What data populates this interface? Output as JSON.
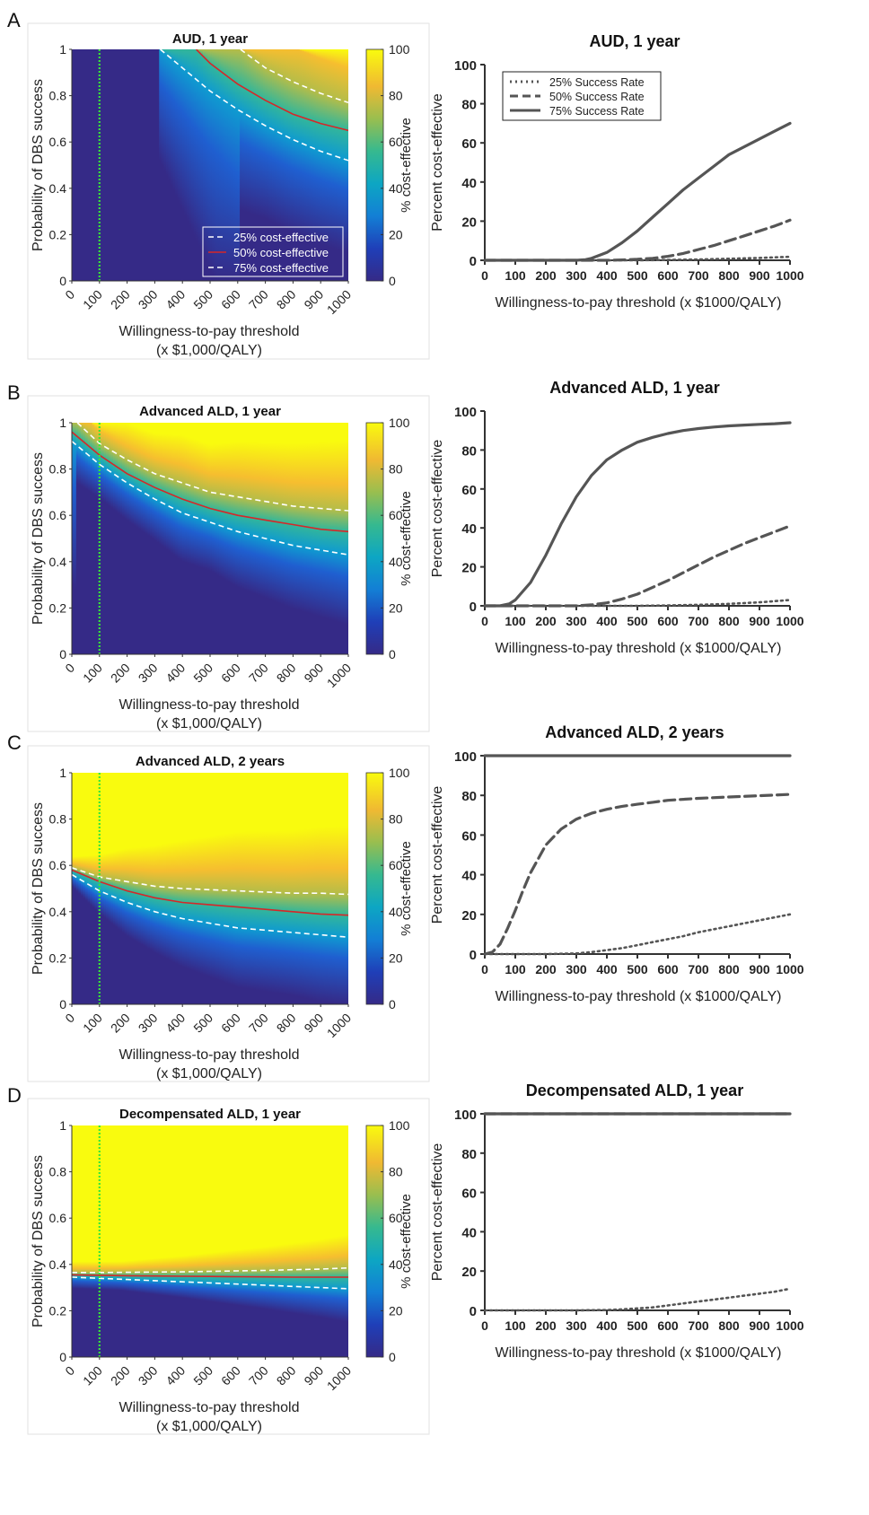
{
  "figure": {
    "heatmap_ylabel": "Probability of DBS success",
    "heatmap_xlabel_line1": "Willingness-to-pay threshold",
    "heatmap_xlabel_line2": "(x $1,000/QALY)",
    "colorbar_label": "% cost-effective",
    "line_ylabel": "Percent cost-effective",
    "line_xlabel": "Willingness-to-pay threshold (x $1000/QALY)"
  },
  "colors": {
    "contour_median": "#d62728",
    "contour_quartile": "#ffffff",
    "wtp_marker": "#39e639",
    "line_series": "#555555"
  },
  "chart_data": [
    {
      "panel": "A",
      "type": "heatmap",
      "title": "AUD, 1 year",
      "xlabel": "Willingness-to-pay threshold (x $1,000/QALY)",
      "ylabel": "Probability of DBS success",
      "x_ticks": [
        "0",
        "100",
        "200",
        "300",
        "400",
        "500",
        "600",
        "700",
        "800",
        "900",
        "1000"
      ],
      "y_ticks": [
        "0",
        "0.2",
        "0.4",
        "0.6",
        "0.8",
        "1"
      ],
      "xlim": [
        0,
        1000
      ],
      "ylim": [
        0,
        1
      ],
      "colorbar": {
        "label": "% cost-effective",
        "ticks": [
          "0",
          "20",
          "40",
          "60",
          "80",
          "100"
        ],
        "colormap": "parula"
      },
      "wtp_marker_x": 100,
      "legend": [
        "25% cost-effective",
        "50% cost-effective",
        "75% cost-effective"
      ],
      "legend_position": "bottom-right",
      "contours": {
        "p25": {
          "x": [
            320,
            400,
            500,
            600,
            700,
            800,
            900,
            1000
          ],
          "y": [
            1.0,
            0.92,
            0.82,
            0.74,
            0.67,
            0.61,
            0.56,
            0.52
          ]
        },
        "p50": {
          "x": [
            450,
            500,
            600,
            700,
            800,
            900,
            1000
          ],
          "y": [
            1.0,
            0.94,
            0.85,
            0.78,
            0.72,
            0.68,
            0.65
          ]
        },
        "p75": {
          "x": [
            610,
            700,
            800,
            900,
            1000
          ],
          "y": [
            1.0,
            0.92,
            0.86,
            0.81,
            0.77
          ]
        }
      }
    },
    {
      "panel": "A",
      "type": "line",
      "title": "AUD, 1 year",
      "xlabel": "Willingness-to-pay threshold (x $1000/QALY)",
      "ylabel": "Percent cost-effective",
      "x_ticks": [
        "0",
        "100",
        "200",
        "300",
        "400",
        "500",
        "600",
        "700",
        "800",
        "900",
        "1000"
      ],
      "y_ticks": [
        "0",
        "20",
        "40",
        "60",
        "80",
        "100"
      ],
      "xlim": [
        0,
        1000
      ],
      "ylim": [
        0,
        100
      ],
      "legend": [
        "25% Success Rate",
        "50% Success Rate",
        "75% Success Rate"
      ],
      "legend_position": "top-left",
      "series": [
        {
          "name": "25% Success Rate",
          "style": "dotted",
          "x": [
            0,
            100,
            200,
            300,
            400,
            500,
            600,
            700,
            800,
            900,
            1000
          ],
          "y": [
            0,
            0,
            0,
            0,
            0,
            0,
            0.2,
            0.4,
            0.8,
            1.2,
            1.8
          ]
        },
        {
          "name": "50% Success Rate",
          "style": "dashed",
          "x": [
            0,
            100,
            200,
            300,
            400,
            450,
            500,
            550,
            600,
            650,
            700,
            750,
            800,
            850,
            900,
            950,
            1000
          ],
          "y": [
            0,
            0,
            0,
            0,
            0,
            0.2,
            0.5,
            1,
            2,
            3.5,
            5.5,
            7.5,
            10,
            12.5,
            15,
            17.5,
            20.5
          ]
        },
        {
          "name": "75% Success Rate",
          "style": "solid",
          "x": [
            0,
            100,
            200,
            300,
            330,
            350,
            400,
            450,
            500,
            550,
            600,
            650,
            700,
            750,
            800,
            850,
            900,
            950,
            1000
          ],
          "y": [
            0,
            0,
            0,
            0,
            0.3,
            1,
            4,
            9,
            15,
            22,
            29,
            36,
            42,
            48,
            54,
            58,
            62,
            66,
            70
          ]
        }
      ]
    },
    {
      "panel": "B",
      "type": "heatmap",
      "title": "Advanced ALD, 1 year",
      "xlabel": "Willingness-to-pay threshold (x $1,000/QALY)",
      "ylabel": "Probability of DBS success",
      "x_ticks": [
        "0",
        "100",
        "200",
        "300",
        "400",
        "500",
        "600",
        "700",
        "800",
        "900",
        "1000"
      ],
      "y_ticks": [
        "0",
        "0.2",
        "0.4",
        "0.6",
        "0.8",
        "1"
      ],
      "xlim": [
        0,
        1000
      ],
      "ylim": [
        0,
        1
      ],
      "colorbar": {
        "label": "% cost-effective",
        "ticks": [
          "0",
          "20",
          "40",
          "60",
          "80",
          "100"
        ],
        "colormap": "parula"
      },
      "wtp_marker_x": 100,
      "contours": {
        "p25": {
          "x": [
            0,
            100,
            200,
            300,
            400,
            500,
            600,
            700,
            800,
            900,
            1000
          ],
          "y": [
            0.92,
            0.82,
            0.74,
            0.67,
            0.61,
            0.57,
            0.53,
            0.5,
            0.47,
            0.45,
            0.43
          ]
        },
        "p50": {
          "x": [
            0,
            100,
            200,
            300,
            400,
            500,
            600,
            700,
            800,
            900,
            1000
          ],
          "y": [
            0.96,
            0.86,
            0.78,
            0.72,
            0.67,
            0.63,
            0.6,
            0.58,
            0.56,
            0.54,
            0.53
          ]
        },
        "p75": {
          "x": [
            20,
            100,
            200,
            300,
            400,
            500,
            600,
            700,
            800,
            900,
            1000
          ],
          "y": [
            1.0,
            0.91,
            0.84,
            0.78,
            0.74,
            0.7,
            0.68,
            0.66,
            0.64,
            0.63,
            0.62
          ]
        }
      }
    },
    {
      "panel": "B",
      "type": "line",
      "title": "Advanced ALD, 1 year",
      "xlabel": "Willingness-to-pay threshold (x $1000/QALY)",
      "ylabel": "Percent cost-effective",
      "x_ticks": [
        "0",
        "100",
        "200",
        "300",
        "400",
        "500",
        "600",
        "700",
        "800",
        "900",
        "1000"
      ],
      "y_ticks": [
        "0",
        "20",
        "40",
        "60",
        "80",
        "100"
      ],
      "xlim": [
        0,
        1000
      ],
      "ylim": [
        0,
        100
      ],
      "series": [
        {
          "name": "25% Success Rate",
          "style": "dotted",
          "x": [
            0,
            100,
            200,
            300,
            400,
            500,
            600,
            700,
            800,
            900,
            1000
          ],
          "y": [
            0,
            0,
            0,
            0,
            0,
            0,
            0.2,
            0.5,
            1,
            1.8,
            3
          ]
        },
        {
          "name": "50% Success Rate",
          "style": "dashed",
          "x": [
            0,
            100,
            200,
            300,
            350,
            400,
            450,
            500,
            550,
            600,
            650,
            700,
            750,
            800,
            850,
            900,
            950,
            1000
          ],
          "y": [
            0,
            0,
            0,
            0,
            0.5,
            1.5,
            3.5,
            6,
            9.5,
            13,
            17,
            21,
            25,
            28.5,
            32,
            35,
            38,
            41
          ]
        },
        {
          "name": "75% Success Rate",
          "style": "solid",
          "x": [
            0,
            50,
            80,
            100,
            150,
            200,
            250,
            300,
            350,
            400,
            450,
            500,
            550,
            600,
            650,
            700,
            750,
            800,
            850,
            900,
            950,
            1000
          ],
          "y": [
            0,
            0,
            1,
            3,
            12,
            26,
            42,
            56,
            67,
            75,
            80,
            84,
            86.5,
            88.5,
            90,
            91,
            91.8,
            92.4,
            92.8,
            93.2,
            93.5,
            94
          ]
        }
      ]
    },
    {
      "panel": "C",
      "type": "heatmap",
      "title": "Advanced ALD, 2 years",
      "xlabel": "Willingness-to-pay threshold (x $1,000/QALY)",
      "ylabel": "Probability of DBS success",
      "x_ticks": [
        "0",
        "100",
        "200",
        "300",
        "400",
        "500",
        "600",
        "700",
        "800",
        "900",
        "1000"
      ],
      "y_ticks": [
        "0",
        "0.2",
        "0.4",
        "0.6",
        "0.8",
        "1"
      ],
      "xlim": [
        0,
        1000
      ],
      "ylim": [
        0,
        1
      ],
      "colorbar": {
        "label": "% cost-effective",
        "ticks": [
          "0",
          "20",
          "40",
          "60",
          "80",
          "100"
        ],
        "colormap": "parula"
      },
      "wtp_marker_x": 100,
      "contours": {
        "p25": {
          "x": [
            0,
            100,
            200,
            300,
            400,
            500,
            600,
            700,
            800,
            900,
            1000
          ],
          "y": [
            0.56,
            0.49,
            0.44,
            0.4,
            0.37,
            0.35,
            0.33,
            0.32,
            0.31,
            0.3,
            0.29
          ]
        },
        "p50": {
          "x": [
            0,
            100,
            200,
            300,
            400,
            500,
            600,
            700,
            800,
            900,
            1000
          ],
          "y": [
            0.58,
            0.53,
            0.49,
            0.46,
            0.44,
            0.43,
            0.42,
            0.41,
            0.4,
            0.39,
            0.385
          ]
        },
        "p75": {
          "x": [
            0,
            100,
            200,
            300,
            400,
            500,
            600,
            700,
            800,
            900,
            1000
          ],
          "y": [
            0.59,
            0.55,
            0.53,
            0.51,
            0.5,
            0.495,
            0.49,
            0.485,
            0.48,
            0.48,
            0.475
          ]
        }
      }
    },
    {
      "panel": "C",
      "type": "line",
      "title": "Advanced ALD, 2 years",
      "xlabel": "Willingness-to-pay threshold (x $1000/QALY)",
      "ylabel": "Percent cost-effective",
      "x_ticks": [
        "0",
        "100",
        "200",
        "300",
        "400",
        "500",
        "600",
        "700",
        "800",
        "900",
        "1000"
      ],
      "y_ticks": [
        "0",
        "20",
        "40",
        "60",
        "80",
        "100"
      ],
      "xlim": [
        0,
        1000
      ],
      "ylim": [
        0,
        100
      ],
      "series": [
        {
          "name": "25% Success Rate",
          "style": "dotted",
          "x": [
            0,
            100,
            200,
            300,
            350,
            400,
            450,
            500,
            550,
            600,
            650,
            700,
            750,
            800,
            850,
            900,
            950,
            1000
          ],
          "y": [
            0,
            0,
            0,
            0.3,
            1,
            2,
            3,
            4.5,
            6,
            7.5,
            9,
            11,
            12.5,
            14,
            15.5,
            17,
            18.5,
            20
          ]
        },
        {
          "name": "50% Success Rate",
          "style": "dashed",
          "x": [
            0,
            25,
            50,
            75,
            100,
            125,
            150,
            200,
            250,
            300,
            350,
            400,
            450,
            500,
            550,
            600,
            700,
            800,
            900,
            1000
          ],
          "y": [
            0,
            1,
            5,
            13,
            22,
            32,
            41,
            55,
            63,
            68,
            71,
            73,
            74.5,
            75.5,
            76.5,
            77.5,
            78.5,
            79.2,
            79.8,
            80.5
          ]
        },
        {
          "name": "75% Success Rate",
          "style": "solid",
          "x": [
            0,
            1000
          ],
          "y": [
            100,
            100
          ]
        }
      ]
    },
    {
      "panel": "D",
      "type": "heatmap",
      "title": "Decompensated ALD, 1 year",
      "xlabel": "Willingness-to-pay threshold (x $1,000/QALY)",
      "ylabel": "Probability of DBS success",
      "x_ticks": [
        "0",
        "100",
        "200",
        "300",
        "400",
        "500",
        "600",
        "700",
        "800",
        "900",
        "1000"
      ],
      "y_ticks": [
        "0",
        "0.2",
        "0.4",
        "0.6",
        "0.8",
        "1"
      ],
      "xlim": [
        0,
        1000
      ],
      "ylim": [
        0,
        1
      ],
      "colorbar": {
        "label": "% cost-effective",
        "ticks": [
          "0",
          "20",
          "40",
          "60",
          "80",
          "100"
        ],
        "colormap": "parula"
      },
      "wtp_marker_x": 100,
      "contours": {
        "p25": {
          "x": [
            0,
            100,
            200,
            300,
            400,
            500,
            600,
            700,
            800,
            900,
            1000
          ],
          "y": [
            0.345,
            0.34,
            0.335,
            0.33,
            0.325,
            0.32,
            0.315,
            0.31,
            0.305,
            0.3,
            0.295
          ]
        },
        "p50": {
          "x": [
            0,
            100,
            200,
            300,
            400,
            500,
            600,
            700,
            800,
            900,
            1000
          ],
          "y": [
            0.355,
            0.353,
            0.351,
            0.35,
            0.349,
            0.348,
            0.347,
            0.346,
            0.345,
            0.345,
            0.345
          ]
        },
        "p75": {
          "x": [
            0,
            100,
            200,
            300,
            400,
            500,
            600,
            700,
            800,
            900,
            1000
          ],
          "y": [
            0.365,
            0.365,
            0.366,
            0.367,
            0.368,
            0.37,
            0.372,
            0.374,
            0.377,
            0.38,
            0.385
          ]
        }
      }
    },
    {
      "panel": "D",
      "type": "line",
      "title": "Decompensated ALD, 1 year",
      "xlabel": "Willingness-to-pay threshold (x $1000/QALY)",
      "ylabel": "Percent cost-effective",
      "x_ticks": [
        "0",
        "100",
        "200",
        "300",
        "400",
        "500",
        "600",
        "700",
        "800",
        "900",
        "1000"
      ],
      "y_ticks": [
        "0",
        "20",
        "40",
        "60",
        "80",
        "100"
      ],
      "xlim": [
        0,
        1000
      ],
      "ylim": [
        0,
        100
      ],
      "series": [
        {
          "name": "25% Success Rate",
          "style": "dotted",
          "x": [
            0,
            100,
            200,
            300,
            400,
            450,
            500,
            550,
            600,
            650,
            700,
            750,
            800,
            850,
            900,
            950,
            1000
          ],
          "y": [
            0,
            0,
            0,
            0,
            0.2,
            0.5,
            1,
            1.5,
            2.5,
            3.5,
            4.5,
            5.5,
            6.5,
            7.5,
            8.5,
            9.5,
            11
          ]
        },
        {
          "name": "50% Success Rate",
          "style": "dashed",
          "x": [
            0,
            1000
          ],
          "y": [
            100,
            100
          ]
        },
        {
          "name": "75% Success Rate",
          "style": "solid",
          "x": [
            0,
            1000
          ],
          "y": [
            100,
            100
          ]
        }
      ]
    }
  ]
}
